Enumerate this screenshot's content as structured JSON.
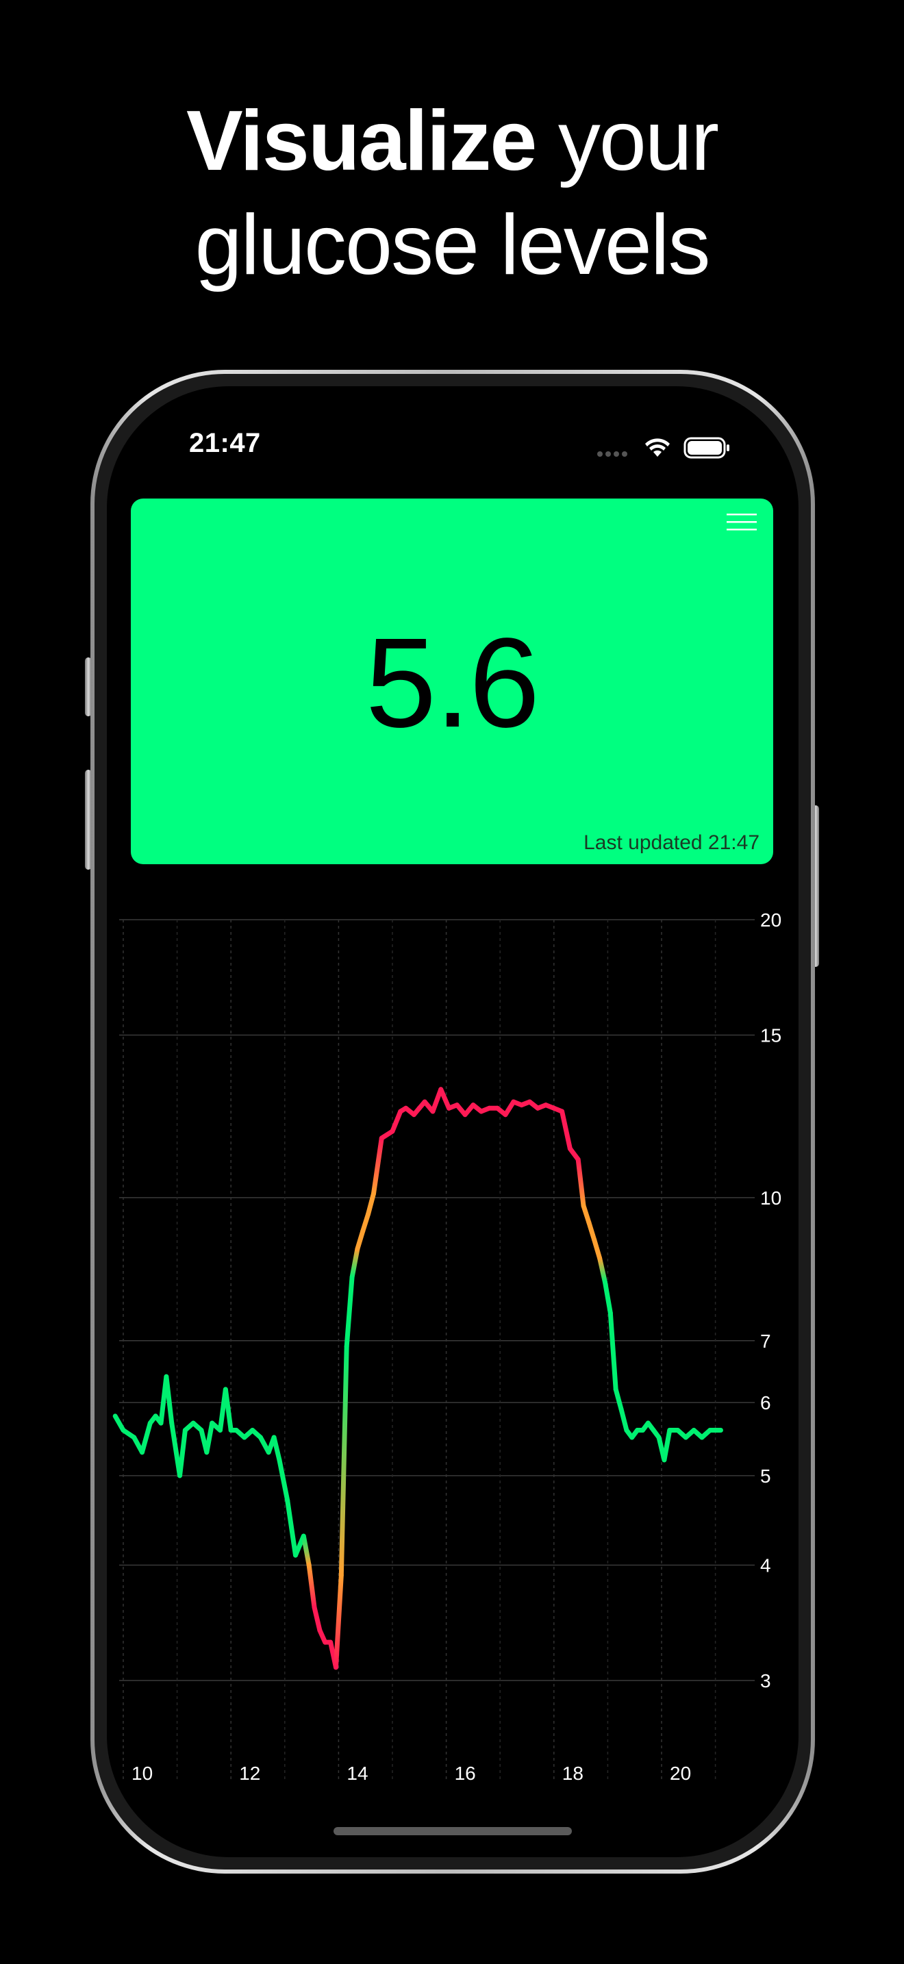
{
  "headline": {
    "bold": "Visualize",
    "rest_line1": " your",
    "line2": "glucose levels"
  },
  "status_bar": {
    "time": "21:47",
    "icons": [
      "cellular-dots-icon",
      "wifi-icon",
      "battery-icon"
    ]
  },
  "card": {
    "value": "5.6",
    "last_updated": "Last updated 21:47",
    "background_color": "#00ff80",
    "menu_icon": "hamburger-menu-icon"
  },
  "colors": {
    "in_range": "#00f070",
    "mid": "#ffa030",
    "high": "#ff1a55"
  },
  "chart_data": {
    "type": "line",
    "yscale": "log",
    "ylim": [
      2.5,
      20
    ],
    "xlim": [
      9.8,
      21.2
    ],
    "yticks": [
      20,
      15,
      10,
      7,
      6,
      5,
      4,
      3
    ],
    "xticks": [
      10,
      12,
      14,
      16,
      18,
      20
    ],
    "ytick_labels": [
      "20",
      "15",
      "10",
      "7",
      "6",
      "5",
      "4",
      "3"
    ],
    "xtick_labels": [
      "10",
      "12",
      "14",
      "16",
      "18",
      "20"
    ],
    "grid": true,
    "x": [
      9.85,
      10.0,
      10.2,
      10.35,
      10.5,
      10.6,
      10.7,
      10.8,
      10.9,
      11.05,
      11.15,
      11.3,
      11.45,
      11.55,
      11.65,
      11.8,
      11.9,
      12.0,
      12.1,
      12.25,
      12.4,
      12.55,
      12.7,
      12.8,
      12.9,
      13.05,
      13.2,
      13.35,
      13.45,
      13.55,
      13.65,
      13.75,
      13.85,
      13.95,
      14.05,
      14.15,
      14.25,
      14.35,
      14.45,
      14.55,
      14.65,
      14.8,
      15.0,
      15.15,
      15.25,
      15.4,
      15.5,
      15.6,
      15.75,
      15.9,
      16.05,
      16.2,
      16.35,
      16.5,
      16.65,
      16.8,
      16.95,
      17.1,
      17.25,
      17.4,
      17.55,
      17.7,
      17.85,
      18.0,
      18.15,
      18.3,
      18.45,
      18.55,
      18.65,
      18.75,
      18.85,
      18.95,
      19.05,
      19.15,
      19.25,
      19.35,
      19.45,
      19.55,
      19.65,
      19.75,
      19.85,
      19.95,
      20.05,
      20.15,
      20.3,
      20.45,
      20.6,
      20.75,
      20.9,
      21.0,
      21.1
    ],
    "y": [
      5.8,
      5.6,
      5.5,
      5.3,
      5.7,
      5.8,
      5.7,
      6.4,
      5.7,
      5.0,
      5.6,
      5.7,
      5.6,
      5.3,
      5.7,
      5.6,
      6.2,
      5.6,
      5.6,
      5.5,
      5.6,
      5.5,
      5.3,
      5.5,
      5.2,
      4.7,
      4.1,
      4.3,
      4.0,
      3.6,
      3.4,
      3.3,
      3.3,
      3.1,
      3.9,
      6.9,
      8.2,
      8.8,
      9.2,
      9.6,
      10.1,
      11.6,
      11.8,
      12.4,
      12.5,
      12.3,
      12.5,
      12.7,
      12.4,
      13.1,
      12.5,
      12.6,
      12.3,
      12.6,
      12.4,
      12.5,
      12.5,
      12.3,
      12.7,
      12.6,
      12.7,
      12.5,
      12.6,
      12.5,
      12.4,
      11.3,
      11.0,
      9.8,
      9.4,
      9.0,
      8.6,
      8.1,
      7.5,
      6.2,
      5.9,
      5.6,
      5.5,
      5.6,
      5.6,
      5.7,
      5.6,
      5.5,
      5.2,
      5.6,
      5.6,
      5.5,
      5.6,
      5.5,
      5.6,
      5.6,
      5.6
    ]
  }
}
